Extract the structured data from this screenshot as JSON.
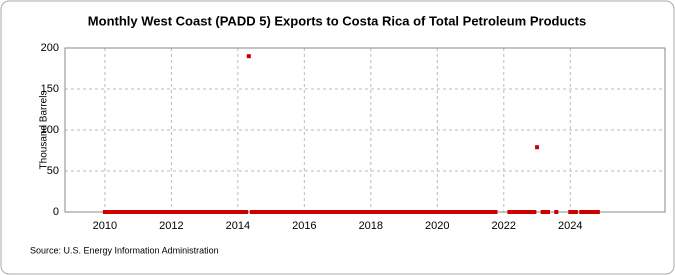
{
  "chart_data": {
    "type": "scatter",
    "title": "Monthly West Coast (PADD 5) Exports to Costa Rica of Total Petroleum Products",
    "y_label": "Thousand Barrels",
    "source": "Source: U.S. Energy Information Administration",
    "x": [
      2010,
      2010.08,
      2010.17,
      2010.25,
      2010.33,
      2010.42,
      2010.5,
      2010.58,
      2010.67,
      2010.75,
      2010.83,
      2010.92,
      2011,
      2011.08,
      2011.17,
      2011.25,
      2011.33,
      2011.42,
      2011.5,
      2011.58,
      2011.67,
      2011.75,
      2011.83,
      2011.92,
      2012,
      2012.08,
      2012.17,
      2012.25,
      2012.33,
      2012.42,
      2012.5,
      2012.58,
      2012.67,
      2012.75,
      2012.83,
      2012.92,
      2013,
      2013.08,
      2013.17,
      2013.25,
      2013.33,
      2013.42,
      2013.5,
      2013.58,
      2013.67,
      2013.75,
      2013.83,
      2013.92,
      2014,
      2014.08,
      2014.17,
      2014.25,
      2014.33,
      2014.42,
      2014.5,
      2014.58,
      2014.67,
      2014.75,
      2014.83,
      2014.92,
      2015,
      2015.08,
      2015.17,
      2015.25,
      2015.33,
      2015.42,
      2015.5,
      2015.58,
      2015.67,
      2015.75,
      2015.83,
      2015.92,
      2016,
      2016.08,
      2016.17,
      2016.25,
      2016.33,
      2016.42,
      2016.5,
      2016.58,
      2016.67,
      2016.75,
      2016.83,
      2016.92,
      2017,
      2017.08,
      2017.17,
      2017.25,
      2017.33,
      2017.42,
      2017.5,
      2017.58,
      2017.67,
      2017.75,
      2017.83,
      2017.92,
      2018,
      2018.08,
      2018.17,
      2018.25,
      2018.33,
      2018.42,
      2018.5,
      2018.58,
      2018.67,
      2018.75,
      2018.83,
      2018.92,
      2019,
      2019.08,
      2019.17,
      2019.25,
      2019.33,
      2019.42,
      2019.5,
      2019.58,
      2019.67,
      2019.75,
      2019.83,
      2019.92,
      2020,
      2020.08,
      2020.17,
      2020.25,
      2020.33,
      2020.42,
      2020.5,
      2020.58,
      2020.67,
      2020.75,
      2020.83,
      2020.92,
      2021,
      2021.08,
      2021.17,
      2021.25,
      2021.33,
      2021.42,
      2021.5,
      2021.58,
      2021.67,
      2021.75,
      2022.17,
      2022.25,
      2022.33,
      2022.42,
      2022.5,
      2022.58,
      2022.67,
      2022.75,
      2022.83,
      2022.92,
      2023,
      2023.17,
      2023.25,
      2023.33,
      2023.58,
      2024,
      2024.08,
      2024.17,
      2024.33,
      2024.42,
      2024.5,
      2024.58,
      2024.67,
      2024.75,
      2024.83
    ],
    "values": [
      0,
      0,
      0,
      0,
      0,
      0,
      0,
      0,
      0,
      0,
      0,
      0,
      0,
      0,
      0,
      0,
      0,
      0,
      0,
      0,
      0,
      0,
      0,
      0,
      0,
      0,
      0,
      0,
      0,
      0,
      0,
      0,
      0,
      0,
      0,
      0,
      0,
      0,
      0,
      0,
      0,
      0,
      0,
      0,
      0,
      0,
      0,
      0,
      0,
      0,
      0,
      0,
      190,
      0,
      0,
      0,
      0,
      0,
      0,
      0,
      0,
      0,
      0,
      0,
      0,
      0,
      0,
      0,
      0,
      0,
      0,
      0,
      0,
      0,
      0,
      0,
      0,
      0,
      0,
      0,
      0,
      0,
      0,
      0,
      0,
      0,
      0,
      0,
      0,
      0,
      0,
      0,
      0,
      0,
      0,
      0,
      0,
      0,
      0,
      0,
      0,
      0,
      0,
      0,
      0,
      0,
      0,
      0,
      0,
      0,
      0,
      0,
      0,
      0,
      0,
      0,
      0,
      0,
      0,
      0,
      0,
      0,
      0,
      0,
      0,
      0,
      0,
      0,
      0,
      0,
      0,
      0,
      0,
      0,
      0,
      0,
      0,
      0,
      0,
      0,
      0,
      0,
      0,
      0,
      0,
      0,
      0,
      0,
      0,
      0,
      0,
      0,
      79,
      0,
      0,
      0,
      0,
      0,
      0,
      0,
      0,
      0,
      0,
      0,
      0,
      0,
      0
    ],
    "color": "#cc0000",
    "xlim": [
      2008.8,
      2026.85
    ],
    "xticks": [
      2010,
      2012,
      2014,
      2016,
      2018,
      2020,
      2022,
      2024
    ],
    "ylim": [
      0,
      200
    ],
    "yticks": [
      0,
      50,
      100,
      150,
      200
    ],
    "grid": true
  }
}
